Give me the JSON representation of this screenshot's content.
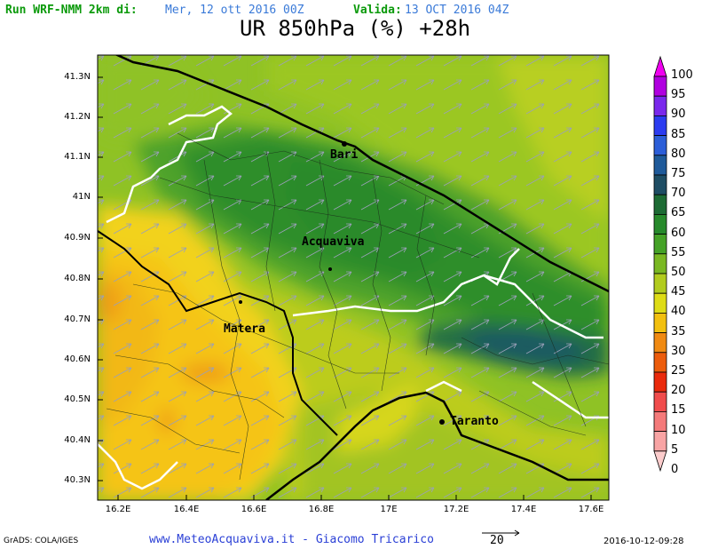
{
  "header": {
    "run_label": "Run WRF-NMM 2km di:",
    "run_date": "Mer, 12 ott 2016 00Z",
    "valid_label": "Valida:",
    "valid_date": "13 OCT 2016 04Z",
    "title": "UR 850hPa (%) +28h"
  },
  "map": {
    "lat_labels": [
      "41.3N",
      "41.2N",
      "41.1N",
      "41N",
      "40.9N",
      "40.8N",
      "40.7N",
      "40.6N",
      "40.5N",
      "40.4N",
      "40.3N"
    ],
    "lon_labels": [
      "16.2E",
      "16.4E",
      "16.6E",
      "16.8E",
      "17E",
      "17.2E",
      "17.4E",
      "17.6E"
    ],
    "cities": [
      "Bari",
      "Acquaviva",
      "Matera",
      "Taranto"
    ]
  },
  "colorbar": {
    "labels": [
      "100",
      "95",
      "90",
      "85",
      "80",
      "75",
      "70",
      "65",
      "60",
      "55",
      "50",
      "45",
      "40",
      "35",
      "30",
      "25",
      "20",
      "15",
      "10",
      "5",
      "0"
    ],
    "colors": [
      "#f000f0",
      "#b000e0",
      "#7a28ec",
      "#2c3cf0",
      "#2c5ed8",
      "#1f5a9a",
      "#1e4d64",
      "#1d6b34",
      "#278a2c",
      "#45a227",
      "#7ab822",
      "#b2cc1e",
      "#dedc16",
      "#f2c00f",
      "#f08a12",
      "#ec5c0c",
      "#ea2a0c",
      "#f04c4c",
      "#f47a7a",
      "#f8a4a4",
      "#fccccc"
    ]
  },
  "footer": {
    "software": "GrADS: COLA/IGES",
    "credit": "www.MeteoAcquaviva.it - Giacomo Tricarico",
    "vector_scale": "20",
    "timestamp": "2016-10-12-09:28"
  }
}
